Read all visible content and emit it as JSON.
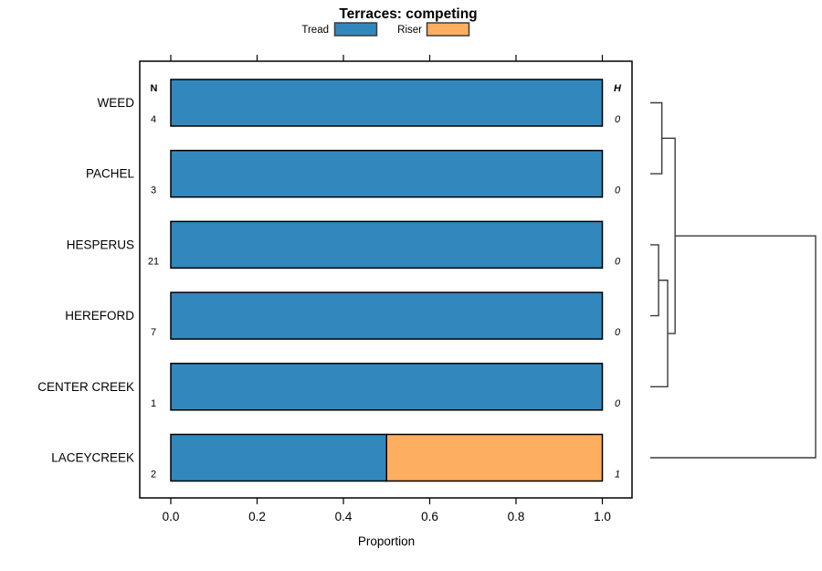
{
  "chart_data": {
    "type": "bar",
    "orientation": "horizontal",
    "stacked": true,
    "title": "Terraces: competing",
    "xlabel": "Proportion",
    "xlim": [
      0,
      1
    ],
    "x_ticks": [
      {
        "value": 0.0,
        "label": "0.0"
      },
      {
        "value": 0.2,
        "label": "0.2"
      },
      {
        "value": 0.4,
        "label": "0.4"
      },
      {
        "value": 0.6,
        "label": "0.6"
      },
      {
        "value": 0.8,
        "label": "0.8"
      },
      {
        "value": 1.0,
        "label": "1.0"
      }
    ],
    "categories": [
      "WEED",
      "PACHEL",
      "HESPERUS",
      "HEREFORD",
      "CENTER CREEK",
      "LACEYCREEK"
    ],
    "series": [
      {
        "name": "Tread",
        "color": "#3288BD",
        "values": [
          1,
          1,
          1,
          1,
          1,
          0.5
        ]
      },
      {
        "name": "Riser",
        "color": "#FDAE61",
        "values": [
          0,
          0,
          0,
          0,
          0,
          0.5
        ]
      }
    ],
    "legend": [
      {
        "label": "Tread",
        "color": "#3288BD"
      },
      {
        "label": "Riser",
        "color": "#FDAE61"
      }
    ],
    "n_header": "N",
    "n_values": [
      "4",
      "3",
      "21",
      "7",
      "1",
      "2"
    ],
    "h_header": "H",
    "h_values": [
      "0",
      "0",
      "0",
      "0",
      "0",
      "1"
    ],
    "dendrogram": {
      "position": "right",
      "merges": [
        {
          "a": "WEED",
          "b": "PACHEL",
          "height": 0.07
        },
        {
          "a": "HESPERUS",
          "b": "HEREFORD",
          "height": 0.05
        },
        {
          "a": "node1",
          "b": "CENTER CREEK",
          "height": 0.105
        },
        {
          "a": "node0",
          "b": "node2",
          "height": 0.15
        },
        {
          "a": "node3",
          "b": "LACEYCREEK",
          "height": 1.0
        }
      ]
    },
    "colors": {
      "bar_border": "#000000",
      "frame": "#000000",
      "swatch_border": "#3b3b3b",
      "dendrogram_line": "#3b3b3b",
      "tick": "#000000"
    }
  }
}
